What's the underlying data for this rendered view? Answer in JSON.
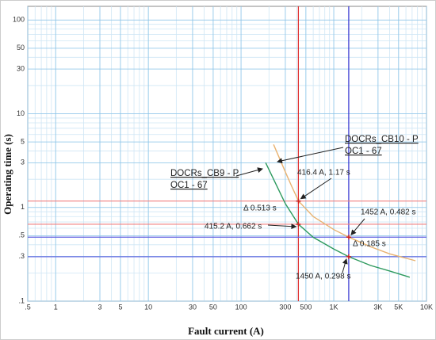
{
  "chart_data": {
    "type": "line",
    "x_label": "Fault current (A)",
    "y_label": "Operating time (s)",
    "xscale": "log",
    "yscale": "log",
    "xlim": [
      0.5,
      10000
    ],
    "ylim": [
      0.1,
      140
    ],
    "xticks": [
      {
        "value": 0.5,
        "label": ".5"
      },
      1,
      3,
      5,
      10,
      30,
      50,
      100,
      300,
      500,
      {
        "value": 1000,
        "label": "1K"
      },
      {
        "value": 3000,
        "label": "3K"
      },
      {
        "value": 5000,
        "label": "5K"
      },
      {
        "value": 10000,
        "label": "10K"
      }
    ],
    "yticks": [
      {
        "value": 0.1,
        "label": ".1"
      },
      {
        "value": 0.3,
        "label": ".3"
      },
      {
        "value": 0.5,
        "label": ".5"
      },
      1,
      3,
      5,
      10,
      30,
      50,
      100
    ],
    "grid": true,
    "series": [
      {
        "name": [
          "DOCRs_CB9 - P",
          "OC1 - 67"
        ],
        "color": "#2e9a5e",
        "x": [
          184,
          250,
          300,
          415.2,
          600,
          1000,
          1450,
          2500,
          4000,
          6600
        ],
        "values": [
          3.0,
          1.6,
          1.1,
          0.662,
          0.48,
          0.36,
          0.298,
          0.24,
          0.21,
          0.18
        ]
      },
      {
        "name": [
          "DOCRs_CB10 - P",
          "OC1 - 67"
        ],
        "color": "#e8b270",
        "x": [
          224,
          300,
          350,
          416.4,
          600,
          1000,
          1452,
          2500,
          4000,
          7600
        ],
        "values": [
          4.7,
          2.4,
          1.7,
          1.17,
          0.8,
          0.58,
          0.482,
          0.38,
          0.32,
          0.27
        ]
      }
    ],
    "reference_lines": [
      {
        "axis": "x",
        "value": 415.2,
        "color": "#e03030"
      },
      {
        "axis": "x",
        "value": 1450,
        "color": "#3030d0"
      },
      {
        "axis": "y",
        "value": 1.17,
        "color": "#f08080"
      },
      {
        "axis": "y",
        "value": 0.662,
        "color": "#f08080"
      },
      {
        "axis": "y",
        "value": 0.482,
        "color": "#6060e0"
      },
      {
        "axis": "y",
        "value": 0.298,
        "color": "#6060e0"
      }
    ],
    "annotations": [
      {
        "text": "416.4 A, 1.17 s",
        "x": 416.4,
        "y": 1.17
      },
      {
        "text": "415.2 A, 0.662 s",
        "x": 415.2,
        "y": 0.662
      },
      {
        "text": "1452 A, 0.482 s",
        "x": 1452,
        "y": 0.482
      },
      {
        "text": "1450 A, 0.298 s",
        "x": 1450,
        "y": 0.298
      },
      {
        "text": "Δ 0.513 s"
      },
      {
        "text": "Δ 0.185 s"
      }
    ]
  }
}
